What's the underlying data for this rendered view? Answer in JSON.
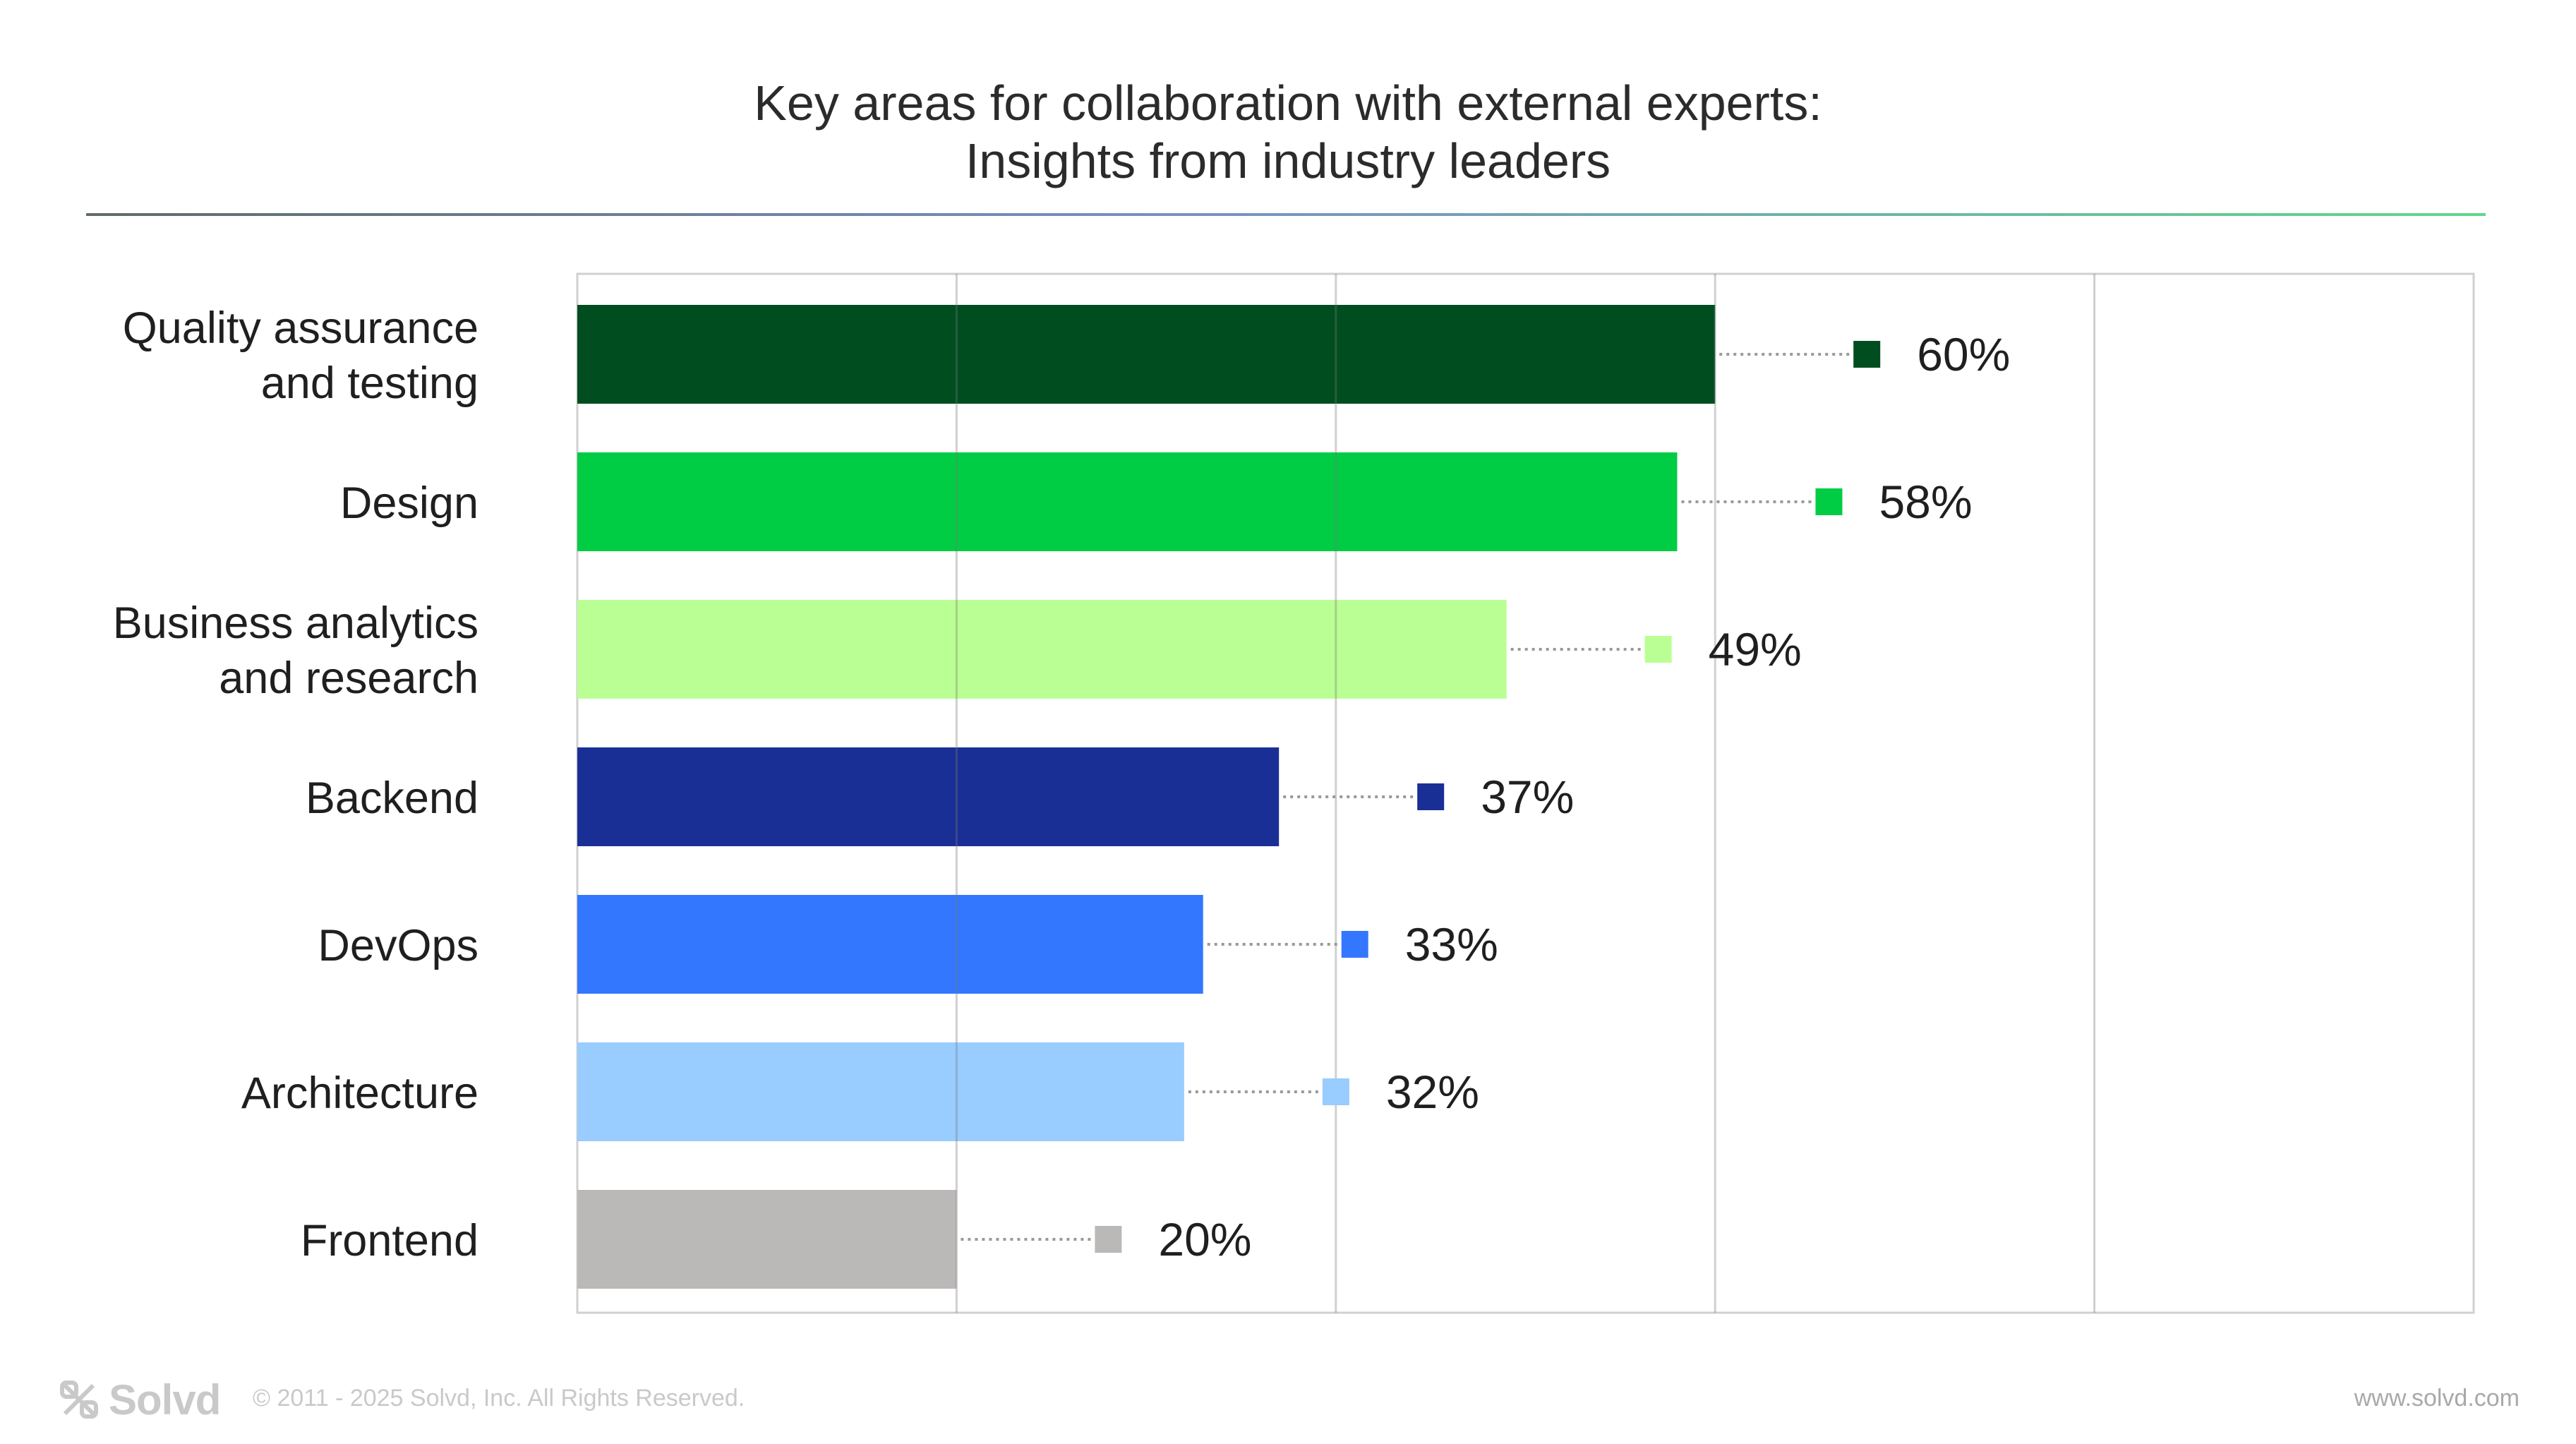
{
  "chart_data": {
    "type": "bar",
    "orientation": "horizontal",
    "title": [
      "Key areas for collaboration with external experts:",
      "Insights from industry leaders"
    ],
    "categories": [
      [
        "Quality assurance",
        "and testing"
      ],
      [
        "Design"
      ],
      [
        "Business analytics",
        "and research"
      ],
      [
        "Backend"
      ],
      [
        "DevOps"
      ],
      [
        "Architecture"
      ],
      [
        "Frontend"
      ]
    ],
    "values": [
      60,
      58,
      49,
      37,
      33,
      32,
      20
    ],
    "value_labels": [
      "60%",
      "58%",
      "49%",
      "37%",
      "33%",
      "32%",
      "20%"
    ],
    "colors": [
      "#004d20",
      "#00cc44",
      "#baff94",
      "#1a2f96",
      "#3377ff",
      "#99ccff",
      "#bbb8b8"
    ],
    "xlim": [
      0,
      100
    ],
    "grid_step": 20,
    "grid": true
  },
  "footer": {
    "brand": "Solvd",
    "copyright": "© 2011 - 2025 Solvd, Inc. All Rights Reserved.",
    "website": "www.solvd.com"
  }
}
